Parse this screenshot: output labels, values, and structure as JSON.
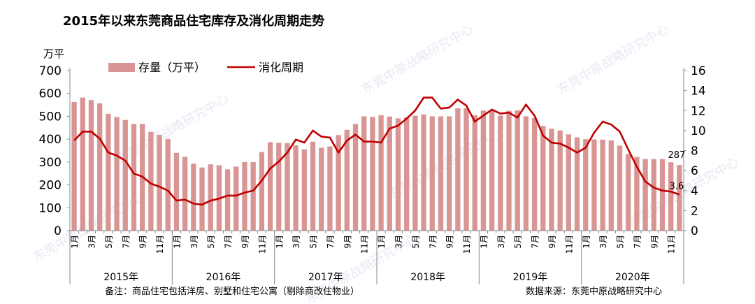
{
  "chart_data": {
    "type": "bar+line",
    "title": "2015年以来东莞商品住宅库存及消化周期走势",
    "left_unit": "万平",
    "left_ylim": [
      0,
      700
    ],
    "left_ticks": [
      "0",
      "100",
      "200",
      "300",
      "400",
      "500",
      "600",
      "700"
    ],
    "right_ylim": [
      0,
      16
    ],
    "right_ticks": [
      "0",
      "2",
      "4",
      "6",
      "8",
      "10",
      "12",
      "14",
      "16"
    ],
    "legend": {
      "bar": "存量（万平）",
      "line": "消化周期"
    },
    "colors": {
      "bar": "#d99594",
      "line": "#c00000",
      "axis": "#888888",
      "text": "#000000"
    },
    "month_labels": [
      "1月",
      "",
      "3月",
      "",
      "5月",
      "",
      "7月",
      "",
      "9月",
      "",
      "11月",
      ""
    ],
    "years": [
      "2015年",
      "2016年",
      "2017年",
      "2018年",
      "2019年",
      "2020年"
    ],
    "bar_values": [
      563,
      582,
      571,
      557,
      511,
      497,
      484,
      467,
      467,
      432,
      419,
      401,
      340,
      323,
      293,
      276,
      290,
      286,
      268,
      280,
      300,
      300,
      344,
      387,
      384,
      383,
      373,
      355,
      389,
      363,
      368,
      418,
      441,
      467,
      500,
      497,
      505,
      499,
      491,
      495,
      503,
      508,
      500,
      500,
      500,
      535,
      535,
      505,
      525,
      526,
      503,
      524,
      526,
      500,
      493,
      458,
      446,
      438,
      421,
      408,
      400,
      399,
      398,
      395,
      372,
      335,
      322,
      313,
      313,
      313,
      299,
      287
    ],
    "line_values": [
      9.0,
      9.9,
      9.9,
      9.2,
      7.8,
      7.5,
      7.0,
      5.7,
      5.4,
      4.7,
      4.4,
      4.0,
      3.0,
      3.1,
      2.7,
      2.6,
      3.0,
      3.2,
      3.5,
      3.5,
      3.8,
      4.0,
      5.0,
      6.2,
      6.9,
      7.8,
      9.1,
      8.8,
      10.0,
      9.4,
      9.3,
      7.8,
      9.0,
      9.6,
      8.9,
      8.9,
      8.8,
      10.2,
      10.5,
      11.2,
      12.0,
      13.3,
      13.3,
      12.2,
      12.3,
      13.1,
      12.5,
      10.9,
      11.5,
      12.1,
      11.7,
      11.8,
      11.3,
      12.6,
      11.5,
      9.5,
      8.8,
      8.7,
      8.3,
      7.8,
      8.3,
      9.8,
      10.9,
      10.6,
      9.9,
      8.1,
      6.4,
      4.9,
      4.3,
      4.0,
      3.9,
      3.6
    ],
    "last_bar_label": "287",
    "last_line_label": "3.6",
    "note": "备注：商品住宅包括洋房、别墅和住宅公寓（剔除商改住物业）",
    "source": "数据来源：东莞中原战略研究中心",
    "watermark": "东莞中原战略研究中心"
  }
}
